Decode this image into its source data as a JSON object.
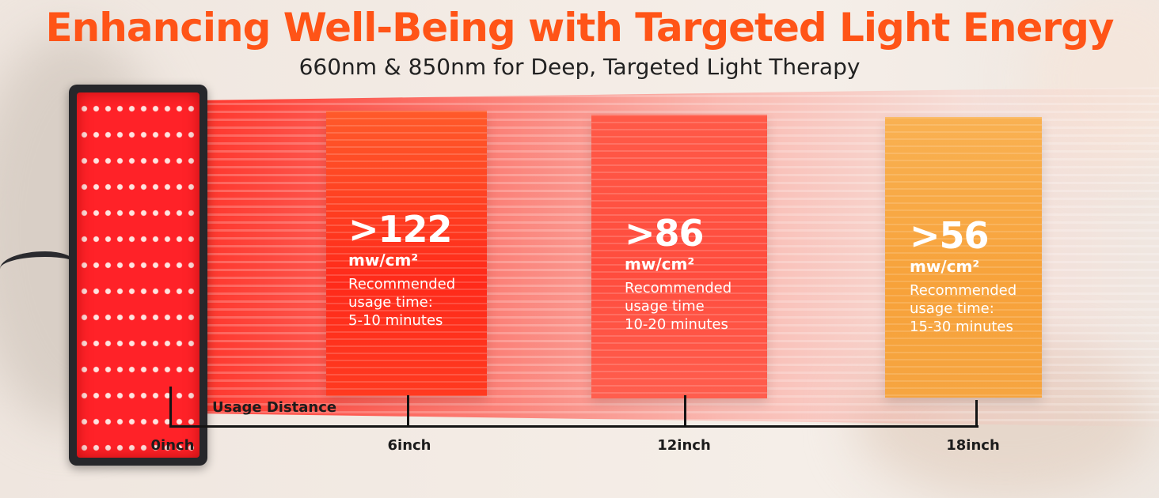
{
  "title": "Enhancing Well-Being with Targeted Light Energy",
  "subtitle": "660nm & 850nm for Deep, Targeted Light Therapy",
  "colors": {
    "title": "#ff5417",
    "card_1": "#ff2d1c",
    "card_2": "#ff4c3d",
    "card_3": "#f7a23a",
    "panel_led": "#ff2228",
    "axis": "#141414"
  },
  "cards": [
    {
      "value": ">122",
      "unit": "mw/cm²",
      "note": "Recommended\nusage time:\n5-10 minutes"
    },
    {
      "value": ">86",
      "unit": "mw/cm²",
      "note": "Recommended\nusage time\n10-20 minutes"
    },
    {
      "value": ">56",
      "unit": "mw/cm²",
      "note": "Recommended\nusage time:\n15-30 minutes"
    }
  ],
  "axis": {
    "label": "Usage Distance",
    "ticks": [
      "0inch",
      "6inch",
      "12inch",
      "18inch"
    ]
  },
  "device": {
    "name_icon": "led-panel-icon"
  }
}
